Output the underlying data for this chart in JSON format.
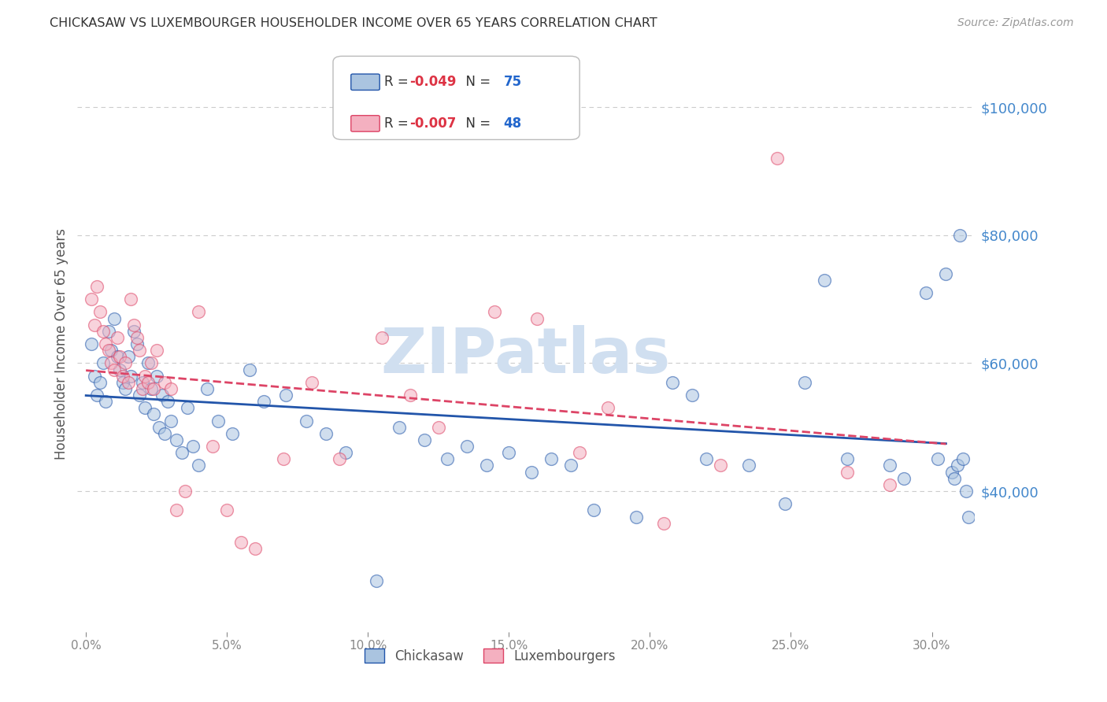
{
  "title": "CHICKASAW VS LUXEMBOURGER HOUSEHOLDER INCOME OVER 65 YEARS CORRELATION CHART",
  "source": "Source: ZipAtlas.com",
  "ylabel": "Householder Income Over 65 years",
  "ytick_labels": [
    "$40,000",
    "$60,000",
    "$80,000",
    "$100,000"
  ],
  "ytick_vals": [
    40000,
    60000,
    80000,
    100000
  ],
  "ymin": 18000,
  "ymax": 108000,
  "xmin": -0.3,
  "xmax": 31.5,
  "chickasaw_color": "#aac4e0",
  "luxembourger_color": "#f4b0c0",
  "trendline_chickasaw_color": "#2255aa",
  "trendline_lux_color": "#dd4466",
  "watermark_text": "ZIPatlas",
  "watermark_color": "#d0dff0",
  "right_ytick_color": "#4488cc",
  "legend_r_color": "#dd3344",
  "legend_n_color": "#2266cc",
  "chickasaw_x": [
    0.2,
    0.3,
    0.4,
    0.5,
    0.6,
    0.7,
    0.8,
    0.9,
    1.0,
    1.1,
    1.2,
    1.3,
    1.4,
    1.5,
    1.6,
    1.7,
    1.8,
    1.9,
    2.0,
    2.1,
    2.2,
    2.3,
    2.4,
    2.5,
    2.6,
    2.7,
    2.8,
    2.9,
    3.0,
    3.2,
    3.4,
    3.6,
    3.8,
    4.0,
    4.3,
    4.7,
    5.2,
    5.8,
    6.3,
    7.1,
    7.8,
    8.5,
    9.2,
    10.3,
    11.1,
    12.0,
    12.8,
    13.5,
    14.2,
    15.0,
    15.8,
    16.5,
    17.2,
    18.0,
    19.5,
    20.8,
    21.5,
    22.0,
    23.5,
    24.8,
    25.5,
    26.2,
    27.0,
    28.5,
    29.0,
    29.8,
    30.2,
    30.5,
    30.7,
    30.8,
    30.9,
    31.0,
    31.1,
    31.2,
    31.3
  ],
  "chickasaw_y": [
    63000,
    58000,
    55000,
    57000,
    60000,
    54000,
    65000,
    62000,
    67000,
    61000,
    59000,
    57000,
    56000,
    61000,
    58000,
    65000,
    63000,
    55000,
    57000,
    53000,
    60000,
    56000,
    52000,
    58000,
    50000,
    55000,
    49000,
    54000,
    51000,
    48000,
    46000,
    53000,
    47000,
    44000,
    56000,
    51000,
    49000,
    59000,
    54000,
    55000,
    51000,
    49000,
    46000,
    26000,
    50000,
    48000,
    45000,
    47000,
    44000,
    46000,
    43000,
    45000,
    44000,
    37000,
    36000,
    57000,
    55000,
    45000,
    44000,
    38000,
    57000,
    73000,
    45000,
    44000,
    42000,
    71000,
    45000,
    74000,
    43000,
    42000,
    44000,
    80000,
    45000,
    40000,
    36000
  ],
  "luxembourger_x": [
    0.2,
    0.3,
    0.4,
    0.5,
    0.6,
    0.7,
    0.8,
    0.9,
    1.0,
    1.1,
    1.2,
    1.3,
    1.4,
    1.5,
    1.6,
    1.7,
    1.8,
    1.9,
    2.0,
    2.1,
    2.2,
    2.3,
    2.4,
    2.5,
    2.8,
    3.0,
    3.2,
    3.5,
    4.0,
    4.5,
    5.0,
    5.5,
    6.0,
    7.0,
    8.0,
    9.0,
    10.5,
    11.5,
    12.5,
    14.5,
    16.0,
    17.5,
    18.5,
    20.5,
    22.5,
    24.5,
    27.0,
    28.5
  ],
  "luxembourger_y": [
    70000,
    66000,
    72000,
    68000,
    65000,
    63000,
    62000,
    60000,
    59000,
    64000,
    61000,
    58000,
    60000,
    57000,
    70000,
    66000,
    64000,
    62000,
    56000,
    58000,
    57000,
    60000,
    56000,
    62000,
    57000,
    56000,
    37000,
    40000,
    68000,
    47000,
    37000,
    32000,
    31000,
    45000,
    57000,
    45000,
    64000,
    55000,
    50000,
    68000,
    67000,
    46000,
    53000,
    35000,
    44000,
    92000,
    43000,
    41000
  ],
  "chickasaw_R": -0.049,
  "chickasaw_N": 75,
  "luxembourger_R": -0.007,
  "luxembourger_N": 48,
  "background_color": "#ffffff",
  "grid_color": "#cccccc",
  "title_color": "#333333",
  "axis_color": "#888888"
}
